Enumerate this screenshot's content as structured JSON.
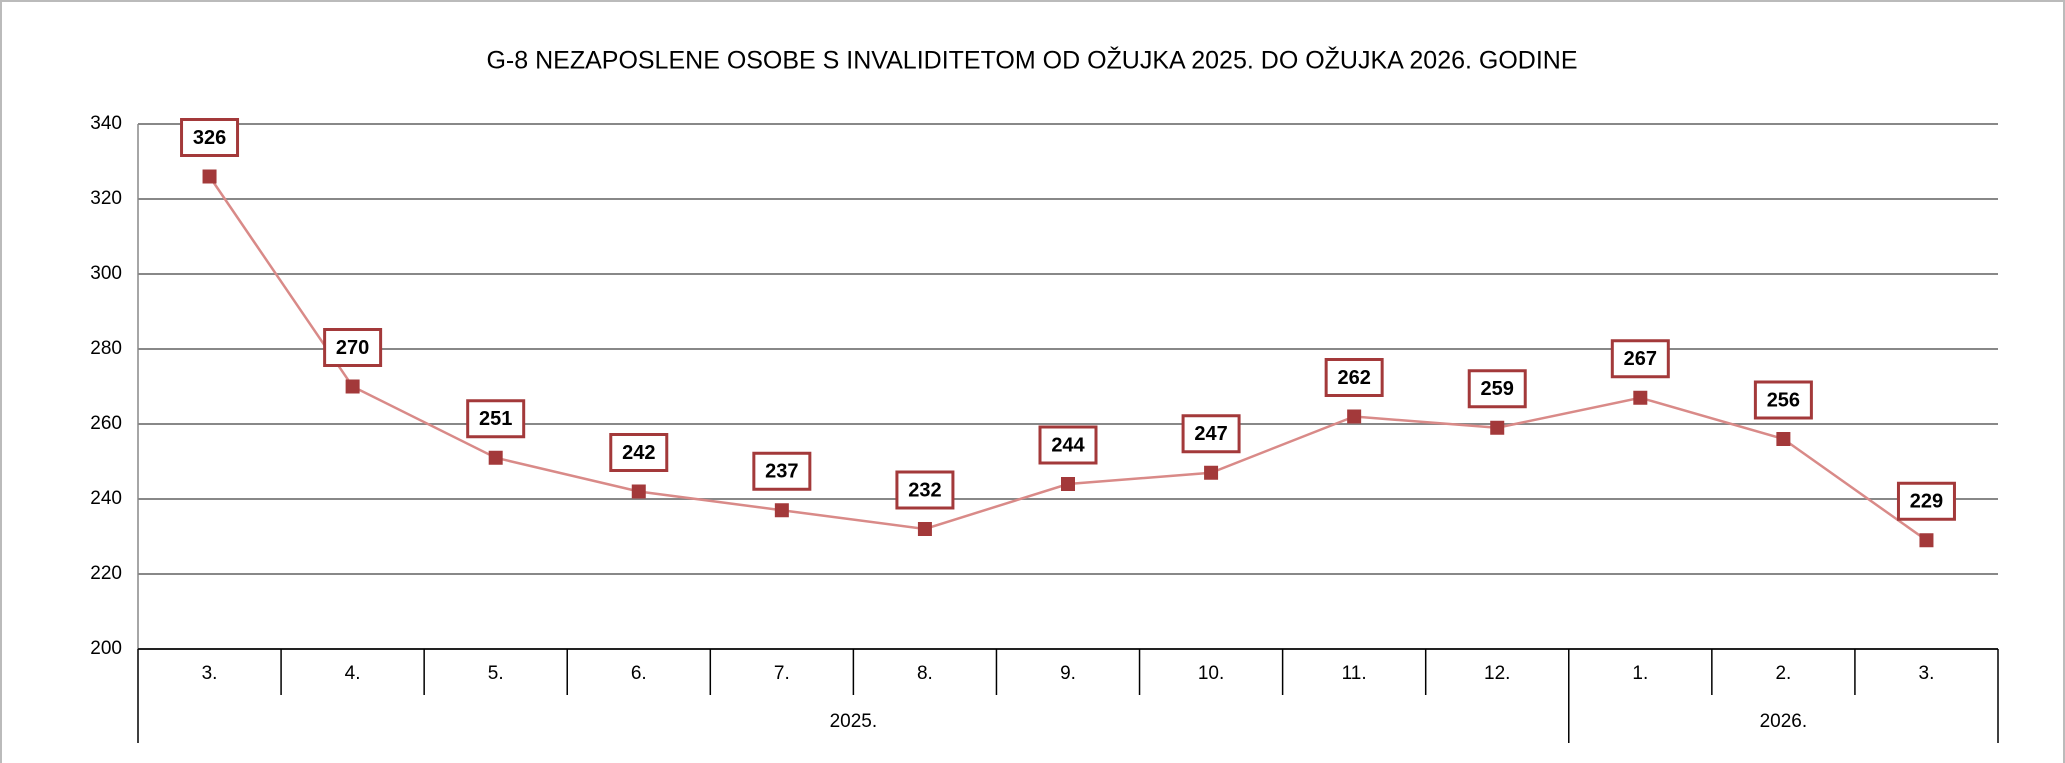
{
  "chart_data": {
    "type": "line",
    "title": "G-8 NEZAPOSLENE OSOBE S INVALIDITETOM OD OŽUJKA 2025. DO OŽUJKA 2026. GODINE",
    "groups": [
      {
        "label": "2025.",
        "categories": [
          "3.",
          "4.",
          "5.",
          "6.",
          "7.",
          "8.",
          "9.",
          "10.",
          "11.",
          "12."
        ]
      },
      {
        "label": "2026.",
        "categories": [
          "1.",
          "2.",
          "3."
        ]
      }
    ],
    "values": [
      326,
      270,
      251,
      242,
      237,
      232,
      244,
      247,
      262,
      259,
      267,
      256,
      229
    ],
    "line_color": "#d98a88",
    "marker_color": "#a3393a",
    "ylim": [
      200,
      340
    ],
    "yticks": [
      200,
      220,
      240,
      260,
      280,
      300,
      320,
      340
    ],
    "grid": true
  }
}
